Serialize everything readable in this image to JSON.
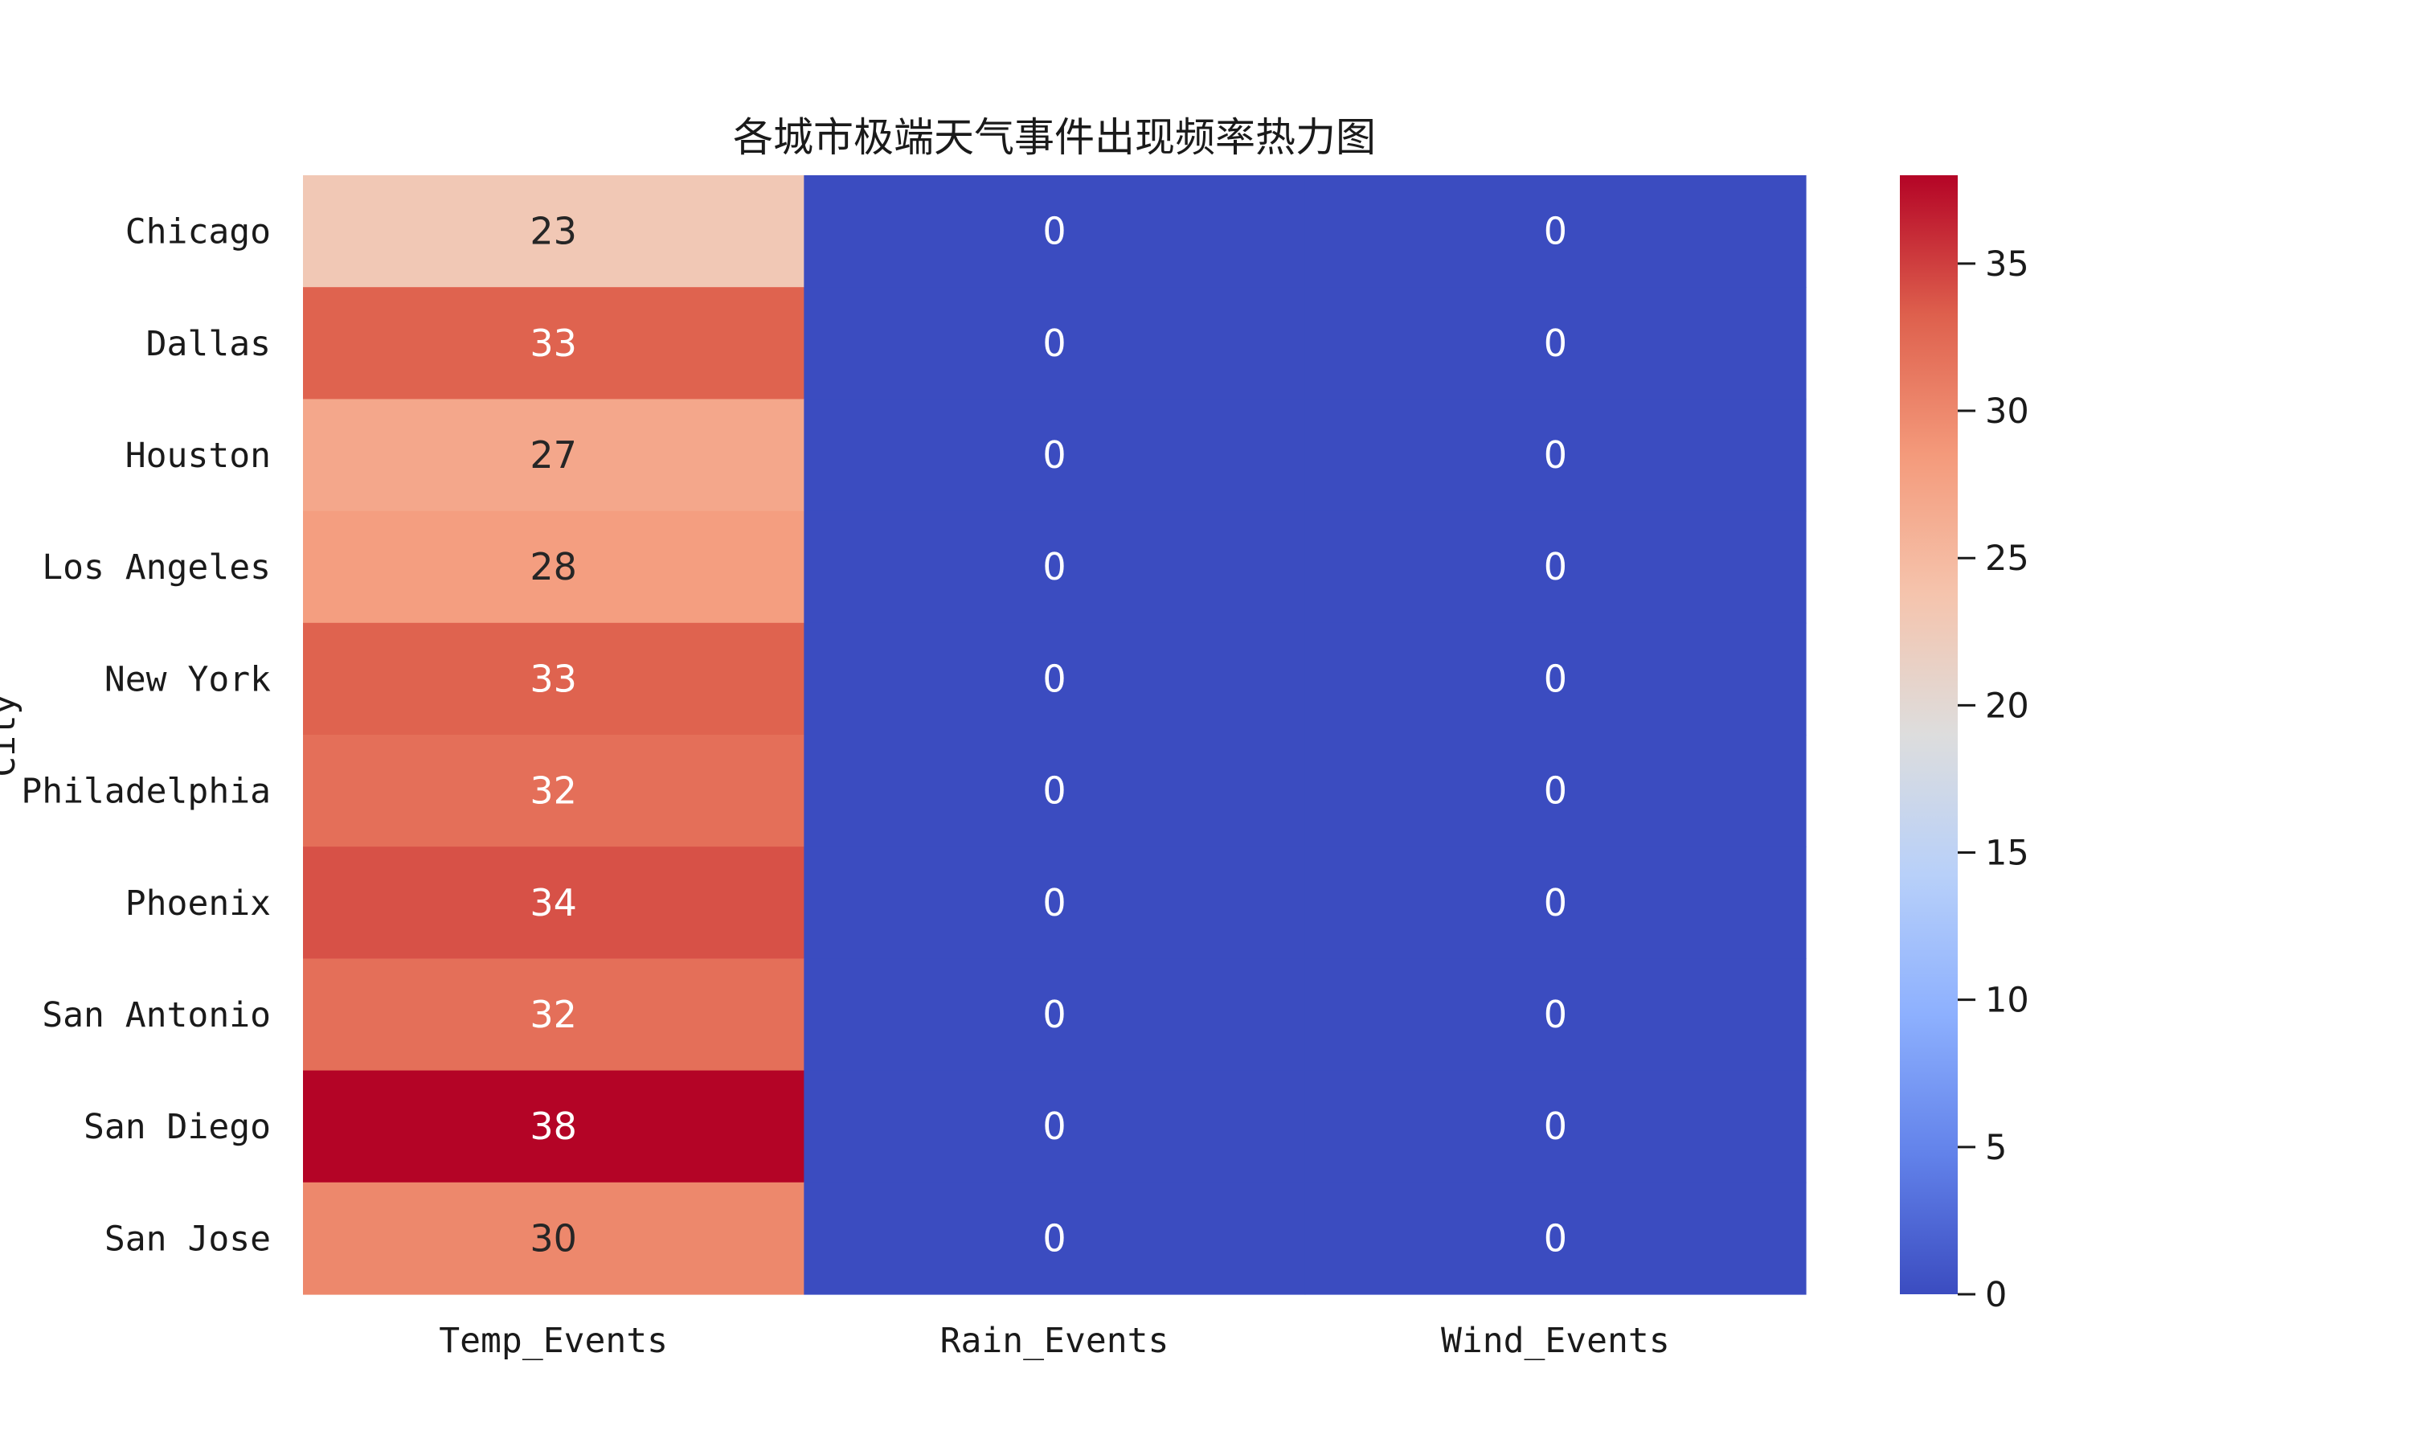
{
  "chart_data": {
    "type": "heatmap",
    "title": "各城市极端天气事件出现频率热力图",
    "ylabel": "City",
    "xlabel": "",
    "rows": [
      "Chicago",
      "Dallas",
      "Houston",
      "Los Angeles",
      "New York",
      "Philadelphia",
      "Phoenix",
      "San Antonio",
      "San Diego",
      "San Jose"
    ],
    "columns": [
      "Temp_Events",
      "Rain_Events",
      "Wind_Events"
    ],
    "values": [
      [
        23,
        0,
        0
      ],
      [
        33,
        0,
        0
      ],
      [
        27,
        0,
        0
      ],
      [
        28,
        0,
        0
      ],
      [
        33,
        0,
        0
      ],
      [
        32,
        0,
        0
      ],
      [
        34,
        0,
        0
      ],
      [
        32,
        0,
        0
      ],
      [
        38,
        0,
        0
      ],
      [
        30,
        0,
        0
      ]
    ],
    "colormap": "coolwarm",
    "color_range": [
      0,
      38
    ],
    "colorbar_ticks": [
      0,
      5,
      10,
      15,
      20,
      25,
      30,
      35
    ],
    "annotations": true
  }
}
